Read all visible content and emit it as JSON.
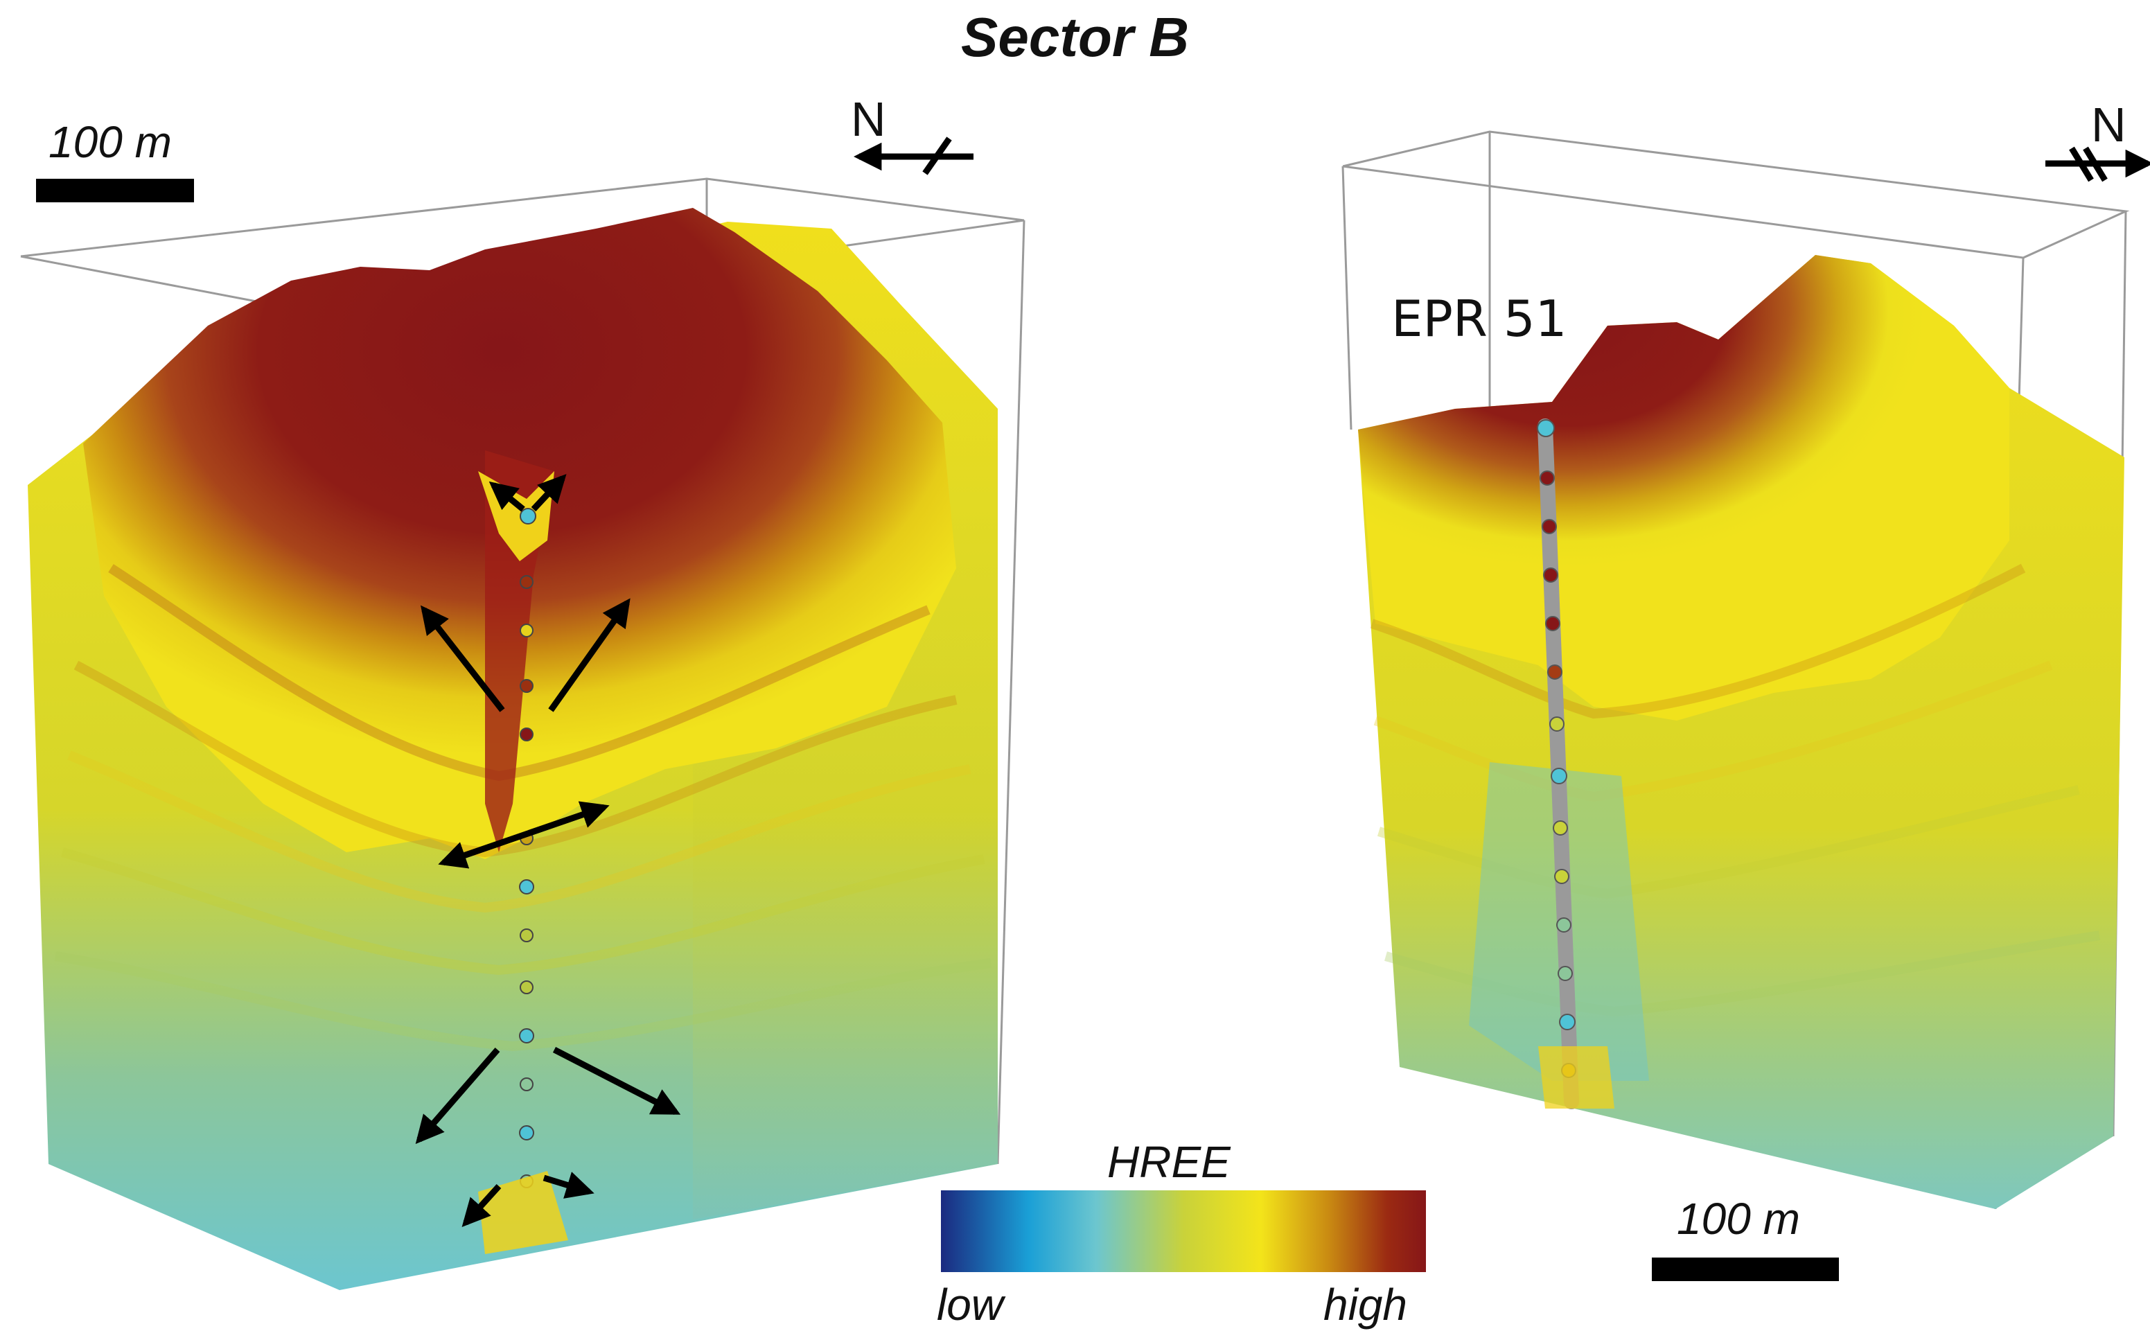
{
  "title": "Sector B",
  "left_block": {
    "scale_label": "100 m",
    "north_label": "N"
  },
  "right_block": {
    "drillhole_label": "EPR 51",
    "scale_label": "100 m",
    "north_label": "N"
  },
  "legend": {
    "title": "HREE",
    "low_label": "low",
    "high_label": "high",
    "colors": [
      "#1b2a80",
      "#1a9fd6",
      "#6cc6cf",
      "#c9d23a",
      "#f3e41a",
      "#c98a12",
      "#9b2a12",
      "#861618"
    ]
  }
}
